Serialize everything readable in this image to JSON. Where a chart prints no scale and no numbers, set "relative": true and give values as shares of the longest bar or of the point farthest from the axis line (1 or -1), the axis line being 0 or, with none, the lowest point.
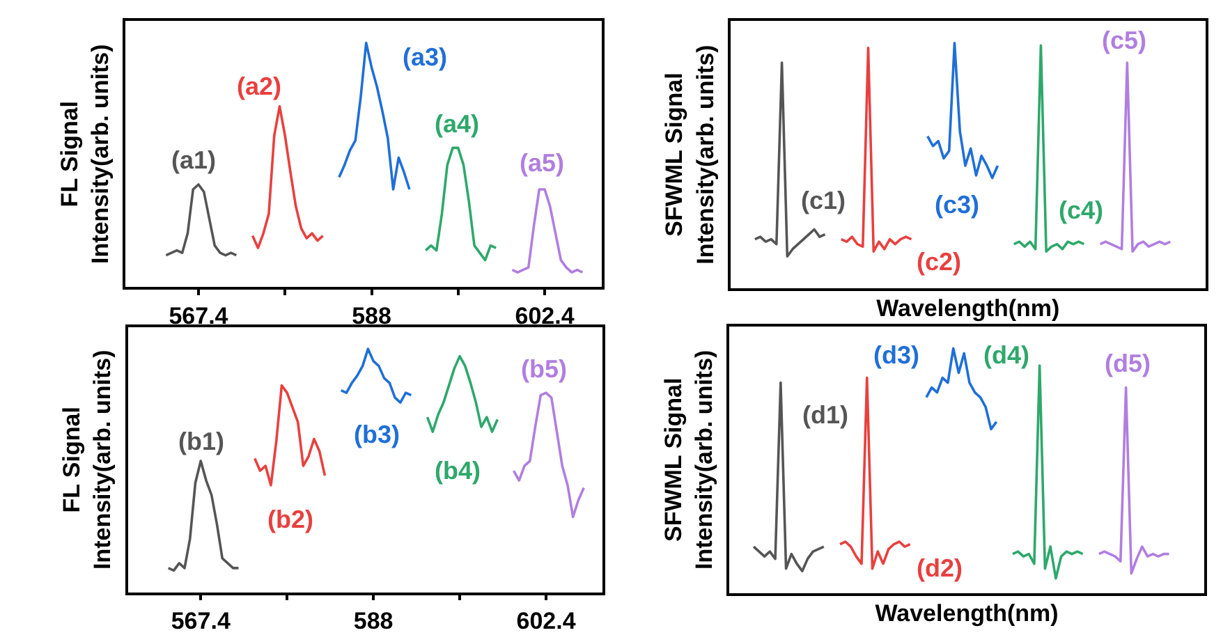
{
  "chart_data": [
    {
      "type": "line",
      "relative": true,
      "ylabel": "FL Signal\nIntensity(arb. units)",
      "categories": [
        null,
        null,
        null,
        null,
        null,
        null,
        null,
        null,
        null,
        null,
        null,
        null,
        null,
        "567.4",
        null,
        null,
        null,
        null,
        null,
        null,
        null,
        null,
        null,
        null,
        null,
        null,
        null,
        null,
        null,
        null,
        null,
        null,
        null,
        null,
        null,
        null,
        null,
        null,
        null,
        null,
        null,
        null,
        null,
        null,
        null,
        "588",
        null,
        null,
        null,
        null,
        null,
        null,
        null,
        null,
        null,
        null,
        null,
        null,
        null,
        null,
        null,
        null,
        null,
        null,
        null,
        null,
        null,
        null,
        null,
        null,
        null,
        null,
        null,
        null,
        null,
        null,
        null,
        "602.4",
        null,
        null,
        null,
        null,
        null,
        null,
        null,
        null,
        null,
        null
      ],
      "series": [
        {
          "color": "#555555",
          "values": [
            null,
            null,
            null,
            null,
            null,
            null,
            null,
            0.13,
            0.14,
            0.15,
            0.14,
            0.22,
            0.4,
            0.42,
            0.39,
            0.28,
            0.17,
            0.14,
            0.13,
            0.14,
            0.13,
            null,
            null,
            null,
            null,
            null,
            null,
            null,
            null,
            null,
            null,
            null,
            null,
            null,
            null,
            null,
            null,
            null,
            null,
            null,
            null,
            null,
            null,
            null,
            null,
            null,
            null,
            null,
            null,
            null,
            null,
            null,
            null,
            null,
            null,
            null,
            null,
            null,
            null,
            null,
            null,
            null,
            null,
            null,
            null,
            null,
            null,
            null,
            null,
            null,
            null,
            null,
            null,
            null,
            null,
            null,
            null,
            null,
            null,
            null,
            null,
            null,
            null,
            null,
            null,
            null,
            null,
            null
          ]
        },
        {
          "color": "#e8403f",
          "values": [
            null,
            null,
            null,
            null,
            null,
            null,
            null,
            null,
            null,
            null,
            null,
            null,
            null,
            null,
            null,
            null,
            null,
            null,
            null,
            null,
            null,
            null,
            null,
            0.21,
            0.16,
            0.22,
            0.3,
            0.62,
            0.74,
            0.62,
            0.47,
            0.33,
            0.24,
            0.2,
            0.22,
            0.19,
            0.21,
            null,
            null,
            null,
            null,
            null,
            null,
            null,
            null,
            null,
            null,
            null,
            null,
            null,
            null,
            null,
            null,
            null,
            null,
            null,
            null,
            null,
            null,
            null,
            null,
            null,
            null,
            null,
            null,
            null,
            null,
            null,
            null,
            null,
            null,
            null,
            null,
            null,
            null,
            null,
            null,
            null,
            null,
            null,
            null,
            null,
            null,
            null,
            null,
            null,
            null,
            null
          ]
        },
        {
          "color": "#1f6fd8",
          "values": [
            null,
            null,
            null,
            null,
            null,
            null,
            null,
            null,
            null,
            null,
            null,
            null,
            null,
            null,
            null,
            null,
            null,
            null,
            null,
            null,
            null,
            null,
            null,
            null,
            null,
            null,
            null,
            null,
            null,
            null,
            null,
            null,
            null,
            null,
            null,
            null,
            null,
            null,
            null,
            0.45,
            0.5,
            0.56,
            0.6,
            0.78,
            1.0,
            0.9,
            0.82,
            0.72,
            0.61,
            0.4,
            0.53,
            0.47,
            0.4,
            null,
            null,
            null,
            null,
            null,
            null,
            null,
            null,
            null,
            null,
            null,
            null,
            null,
            null,
            null,
            null,
            null,
            null,
            null,
            null,
            null,
            null,
            null,
            null,
            null,
            null,
            null,
            null,
            null,
            null,
            null,
            null,
            null,
            null,
            null
          ]
        },
        {
          "color": "#2ea86b",
          "values": [
            null,
            null,
            null,
            null,
            null,
            null,
            null,
            null,
            null,
            null,
            null,
            null,
            null,
            null,
            null,
            null,
            null,
            null,
            null,
            null,
            null,
            null,
            null,
            null,
            null,
            null,
            null,
            null,
            null,
            null,
            null,
            null,
            null,
            null,
            null,
            null,
            null,
            null,
            null,
            null,
            null,
            null,
            null,
            null,
            null,
            null,
            null,
            null,
            null,
            null,
            null,
            null,
            null,
            null,
            null,
            0.15,
            0.17,
            0.15,
            0.3,
            0.5,
            0.57,
            0.57,
            0.5,
            0.35,
            0.17,
            0.14,
            0.11,
            0.17,
            0.16,
            null,
            null,
            null,
            null,
            null,
            null,
            null,
            null,
            null,
            null,
            null,
            null,
            null,
            null,
            null,
            null,
            null,
            null,
            null
          ]
        },
        {
          "color": "#b07ee0",
          "values": [
            null,
            null,
            null,
            null,
            null,
            null,
            null,
            null,
            null,
            null,
            null,
            null,
            null,
            null,
            null,
            null,
            null,
            null,
            null,
            null,
            null,
            null,
            null,
            null,
            null,
            null,
            null,
            null,
            null,
            null,
            null,
            null,
            null,
            null,
            null,
            null,
            null,
            null,
            null,
            null,
            null,
            null,
            null,
            null,
            null,
            null,
            null,
            null,
            null,
            null,
            null,
            null,
            null,
            null,
            null,
            null,
            null,
            null,
            null,
            null,
            null,
            null,
            null,
            null,
            null,
            null,
            null,
            null,
            null,
            null,
            null,
            0.07,
            0.06,
            0.07,
            0.08,
            0.25,
            0.4,
            0.4,
            0.33,
            0.22,
            0.11,
            0.08,
            0.06,
            0.07,
            0.06,
            null,
            null,
            null
          ]
        }
      ],
      "annotations": [
        "(a1)",
        "(a2)",
        "(a3)",
        "(a4)",
        "(a5)"
      ]
    },
    {
      "type": "line",
      "relative": true,
      "ylabel": "SFWML Signal\nIntensity(arb. units)",
      "xlabel": "Wavelength(nm)",
      "categories": [
        null,
        null,
        null,
        null,
        null,
        null,
        null,
        null,
        null,
        null,
        null,
        null,
        null,
        null,
        null,
        null,
        null,
        null,
        null,
        null,
        null,
        null,
        null,
        null,
        null,
        null,
        null,
        null,
        null,
        null,
        null,
        null,
        null,
        null,
        null,
        null,
        null,
        null,
        null,
        null,
        null,
        null,
        null,
        null,
        null,
        null,
        null,
        null,
        null,
        null,
        null,
        null,
        null,
        null,
        null,
        null,
        null,
        null,
        null,
        null,
        null,
        null,
        null,
        null,
        null,
        null,
        null,
        null,
        null,
        null,
        null,
        null,
        null,
        null,
        null,
        null,
        null,
        null,
        null,
        null,
        null,
        null,
        null,
        null,
        null,
        null,
        null,
        null
      ],
      "series": [
        {
          "color": "#555555",
          "values": [
            null,
            null,
            null,
            null,
            0.2,
            0.21,
            0.19,
            0.2,
            0.18,
            0.92,
            0.13,
            0.16,
            0.18,
            0.2,
            0.22,
            0.24,
            0.21,
            0.22,
            null,
            null,
            null,
            null,
            null,
            null,
            null,
            null,
            null,
            null,
            null,
            null,
            null,
            null,
            null,
            null,
            null,
            null,
            null,
            null,
            null,
            null,
            null,
            null,
            null,
            null,
            null,
            null,
            null,
            null,
            null,
            null,
            null,
            null,
            null,
            null,
            null,
            null,
            null,
            null,
            null,
            null,
            null,
            null,
            null,
            null,
            null,
            null,
            null,
            null,
            null,
            null,
            null,
            null,
            null,
            null,
            null,
            null,
            null,
            null,
            null,
            null,
            null,
            null,
            null,
            null,
            null,
            null,
            null,
            null
          ]
        },
        {
          "color": "#e8403f",
          "values": [
            null,
            null,
            null,
            null,
            null,
            null,
            null,
            null,
            null,
            null,
            null,
            null,
            null,
            null,
            null,
            null,
            null,
            null,
            null,
            null,
            0.2,
            0.19,
            0.21,
            0.18,
            0.17,
            0.98,
            0.15,
            0.19,
            0.16,
            0.2,
            0.18,
            0.2,
            0.21,
            0.2,
            null,
            null,
            null,
            null,
            null,
            null,
            null,
            null,
            null,
            null,
            null,
            null,
            null,
            null,
            null,
            null,
            null,
            null,
            null,
            null,
            null,
            null,
            null,
            null,
            null,
            null,
            null,
            null,
            null,
            null,
            null,
            null,
            null,
            null,
            null,
            null,
            null,
            null,
            null,
            null,
            null,
            null,
            null,
            null,
            null,
            null,
            null,
            null,
            null,
            null,
            null,
            null,
            null,
            null
          ]
        },
        {
          "color": "#1f6fd8",
          "values": [
            null,
            null,
            null,
            null,
            null,
            null,
            null,
            null,
            null,
            null,
            null,
            null,
            null,
            null,
            null,
            null,
            null,
            null,
            null,
            null,
            null,
            null,
            null,
            null,
            null,
            null,
            null,
            null,
            null,
            null,
            null,
            null,
            null,
            null,
            null,
            null,
            0.62,
            0.58,
            0.6,
            0.53,
            0.56,
            1.0,
            0.64,
            0.5,
            0.57,
            0.46,
            0.54,
            0.5,
            0.45,
            0.5,
            null,
            null,
            null,
            null,
            null,
            null,
            null,
            null,
            null,
            null,
            null,
            null,
            null,
            null,
            null,
            null,
            null,
            null,
            null,
            null,
            null,
            null,
            null,
            null,
            null,
            null,
            null,
            null,
            null,
            null,
            null,
            null,
            null,
            null,
            null,
            null,
            null,
            null
          ]
        },
        {
          "color": "#2ea86b",
          "values": [
            null,
            null,
            null,
            null,
            null,
            null,
            null,
            null,
            null,
            null,
            null,
            null,
            null,
            null,
            null,
            null,
            null,
            null,
            null,
            null,
            null,
            null,
            null,
            null,
            null,
            null,
            null,
            null,
            null,
            null,
            null,
            null,
            null,
            null,
            null,
            null,
            null,
            null,
            null,
            null,
            null,
            null,
            null,
            null,
            null,
            null,
            null,
            null,
            null,
            null,
            null,
            null,
            0.18,
            0.19,
            0.17,
            0.19,
            0.16,
            0.99,
            0.15,
            0.17,
            0.18,
            0.16,
            0.19,
            0.18,
            0.19,
            0.18,
            null,
            null,
            null,
            null,
            null,
            null,
            null,
            null,
            null,
            null,
            null,
            null,
            null,
            null,
            null,
            null,
            null,
            null,
            null,
            null,
            null,
            null
          ]
        },
        {
          "color": "#b07ee0",
          "values": [
            null,
            null,
            null,
            null,
            null,
            null,
            null,
            null,
            null,
            null,
            null,
            null,
            null,
            null,
            null,
            null,
            null,
            null,
            null,
            null,
            null,
            null,
            null,
            null,
            null,
            null,
            null,
            null,
            null,
            null,
            null,
            null,
            null,
            null,
            null,
            null,
            null,
            null,
            null,
            null,
            null,
            null,
            null,
            null,
            null,
            null,
            null,
            null,
            null,
            null,
            null,
            null,
            null,
            null,
            null,
            null,
            null,
            null,
            null,
            null,
            null,
            null,
            null,
            null,
            null,
            null,
            null,
            null,
            0.18,
            0.19,
            0.18,
            0.17,
            0.16,
            0.92,
            0.15,
            0.18,
            0.19,
            0.17,
            0.18,
            0.19,
            0.18,
            0.19,
            null,
            null,
            null,
            null,
            null,
            null
          ]
        }
      ],
      "annotations": [
        "(c1)",
        "(c2)",
        "(c3)",
        "(c4)",
        "(c5)"
      ]
    },
    {
      "type": "line",
      "relative": true,
      "ylabel": "FL Signal\nIntensity(arb. units)",
      "categories": [
        null,
        null,
        null,
        null,
        null,
        null,
        null,
        null,
        null,
        null,
        null,
        null,
        null,
        "567.4",
        null,
        null,
        null,
        null,
        null,
        null,
        null,
        null,
        null,
        null,
        null,
        null,
        null,
        null,
        null,
        null,
        null,
        null,
        null,
        null,
        null,
        null,
        null,
        null,
        null,
        null,
        null,
        null,
        null,
        null,
        null,
        "588",
        null,
        null,
        null,
        null,
        null,
        null,
        null,
        null,
        null,
        null,
        null,
        null,
        null,
        null,
        null,
        null,
        null,
        null,
        null,
        null,
        null,
        null,
        null,
        null,
        null,
        null,
        null,
        null,
        null,
        null,
        null,
        "602.4",
        null,
        null,
        null,
        null,
        null,
        null,
        null,
        null,
        null,
        null
      ],
      "series": [
        {
          "color": "#555555",
          "values": [
            null,
            null,
            null,
            null,
            null,
            null,
            null,
            0.1,
            0.09,
            0.12,
            0.1,
            0.22,
            0.45,
            0.54,
            0.46,
            0.4,
            0.28,
            0.14,
            0.12,
            0.1,
            0.1,
            null,
            null,
            null,
            null,
            null,
            null,
            null,
            null,
            null,
            null,
            null,
            null,
            null,
            null,
            null,
            null,
            null,
            null,
            null,
            null,
            null,
            null,
            null,
            null,
            null,
            null,
            null,
            null,
            null,
            null,
            null,
            null,
            null,
            null,
            null,
            null,
            null,
            null,
            null,
            null,
            null,
            null,
            null,
            null,
            null,
            null,
            null,
            null,
            null,
            null,
            null,
            null,
            null,
            null,
            null,
            null,
            null,
            null,
            null,
            null,
            null,
            null,
            null,
            null,
            null,
            null,
            null
          ]
        },
        {
          "color": "#e8403f",
          "values": [
            null,
            null,
            null,
            null,
            null,
            null,
            null,
            null,
            null,
            null,
            null,
            null,
            null,
            null,
            null,
            null,
            null,
            null,
            null,
            null,
            null,
            null,
            null,
            0.55,
            0.5,
            0.52,
            0.44,
            0.62,
            0.85,
            0.82,
            0.76,
            0.7,
            0.52,
            0.56,
            0.63,
            0.58,
            0.48,
            null,
            null,
            null,
            null,
            null,
            null,
            null,
            null,
            null,
            null,
            null,
            null,
            null,
            null,
            null,
            null,
            null,
            null,
            null,
            null,
            null,
            null,
            null,
            null,
            null,
            null,
            null,
            null,
            null,
            null,
            null,
            null,
            null,
            null,
            null,
            null,
            null,
            null,
            null,
            null,
            null,
            null,
            null,
            null,
            null,
            null,
            null,
            null,
            null,
            null,
            null
          ]
        },
        {
          "color": "#1f6fd8",
          "values": [
            null,
            null,
            null,
            null,
            null,
            null,
            null,
            null,
            null,
            null,
            null,
            null,
            null,
            null,
            null,
            null,
            null,
            null,
            null,
            null,
            null,
            null,
            null,
            null,
            null,
            null,
            null,
            null,
            null,
            null,
            null,
            null,
            null,
            null,
            null,
            null,
            null,
            null,
            null,
            0.83,
            0.82,
            0.86,
            0.89,
            0.93,
            1.0,
            0.95,
            0.93,
            0.88,
            0.86,
            0.8,
            0.78,
            0.82,
            0.81,
            null,
            null,
            null,
            null,
            null,
            null,
            null,
            null,
            null,
            null,
            null,
            null,
            null,
            null,
            null,
            null,
            null,
            null,
            null,
            null,
            null,
            null,
            null,
            null,
            null,
            null,
            null,
            null,
            null,
            null,
            null,
            null,
            null,
            null,
            null
          ]
        },
        {
          "color": "#2ea86b",
          "values": [
            null,
            null,
            null,
            null,
            null,
            null,
            null,
            null,
            null,
            null,
            null,
            null,
            null,
            null,
            null,
            null,
            null,
            null,
            null,
            null,
            null,
            null,
            null,
            null,
            null,
            null,
            null,
            null,
            null,
            null,
            null,
            null,
            null,
            null,
            null,
            null,
            null,
            null,
            null,
            null,
            null,
            null,
            null,
            null,
            null,
            null,
            null,
            null,
            null,
            null,
            null,
            null,
            null,
            null,
            null,
            0.72,
            0.66,
            0.73,
            0.78,
            0.85,
            0.92,
            0.97,
            0.93,
            0.86,
            0.78,
            0.68,
            0.72,
            0.66,
            0.71,
            null,
            null,
            null,
            null,
            null,
            null,
            null,
            null,
            null,
            null,
            null,
            null,
            null,
            null,
            null,
            null,
            null,
            null,
            null
          ]
        },
        {
          "color": "#b07ee0",
          "values": [
            null,
            null,
            null,
            null,
            null,
            null,
            null,
            null,
            null,
            null,
            null,
            null,
            null,
            null,
            null,
            null,
            null,
            null,
            null,
            null,
            null,
            null,
            null,
            null,
            null,
            null,
            null,
            null,
            null,
            null,
            null,
            null,
            null,
            null,
            null,
            null,
            null,
            null,
            null,
            null,
            null,
            null,
            null,
            null,
            null,
            null,
            null,
            null,
            null,
            null,
            null,
            null,
            null,
            null,
            null,
            null,
            null,
            null,
            null,
            null,
            null,
            null,
            null,
            null,
            null,
            null,
            null,
            null,
            null,
            null,
            null,
            0.5,
            0.46,
            0.52,
            0.54,
            0.68,
            0.81,
            0.82,
            0.8,
            0.66,
            0.52,
            0.44,
            0.31,
            0.38,
            0.43,
            null,
            null,
            null
          ]
        }
      ],
      "annotations": [
        "(b1)",
        "(b2)",
        "(b3)",
        "(b4)",
        "(b5)"
      ]
    },
    {
      "type": "line",
      "relative": true,
      "ylabel": "SFWML Signal\nIntensity(arb. units)",
      "xlabel": "Wavelength(nm)",
      "categories": [
        null,
        null,
        null,
        null,
        null,
        null,
        null,
        null,
        null,
        null,
        null,
        null,
        null,
        null,
        null,
        null,
        null,
        null,
        null,
        null,
        null,
        null,
        null,
        null,
        null,
        null,
        null,
        null,
        null,
        null,
        null,
        null,
        null,
        null,
        null,
        null,
        null,
        null,
        null,
        null,
        null,
        null,
        null,
        null,
        null,
        null,
        null,
        null,
        null,
        null,
        null,
        null,
        null,
        null,
        null,
        null,
        null,
        null,
        null,
        null,
        null,
        null,
        null,
        null,
        null,
        null,
        null,
        null,
        null,
        null,
        null,
        null,
        null,
        null,
        null,
        null,
        null,
        null,
        null,
        null,
        null,
        null,
        null,
        null,
        null,
        null,
        null,
        null
      ],
      "series": [
        {
          "color": "#555555",
          "values": [
            null,
            null,
            null,
            null,
            0.19,
            0.17,
            0.15,
            0.17,
            0.14,
            0.86,
            0.1,
            0.16,
            0.12,
            0.09,
            0.14,
            0.17,
            0.18,
            0.19,
            null,
            null,
            null,
            null,
            null,
            null,
            null,
            null,
            null,
            null,
            null,
            null,
            null,
            null,
            null,
            null,
            null,
            null,
            null,
            null,
            null,
            null,
            null,
            null,
            null,
            null,
            null,
            null,
            null,
            null,
            null,
            null,
            null,
            null,
            null,
            null,
            null,
            null,
            null,
            null,
            null,
            null,
            null,
            null,
            null,
            null,
            null,
            null,
            null,
            null,
            null,
            null,
            null,
            null,
            null,
            null,
            null,
            null,
            null,
            null,
            null,
            null,
            null,
            null,
            null,
            null,
            null,
            null,
            null,
            null
          ]
        },
        {
          "color": "#e8403f",
          "values": [
            null,
            null,
            null,
            null,
            null,
            null,
            null,
            null,
            null,
            null,
            null,
            null,
            null,
            null,
            null,
            null,
            null,
            null,
            null,
            null,
            0.2,
            0.21,
            0.19,
            0.15,
            0.12,
            0.88,
            0.1,
            0.17,
            0.12,
            0.18,
            0.2,
            0.21,
            0.19,
            0.2,
            null,
            null,
            null,
            null,
            null,
            null,
            null,
            null,
            null,
            null,
            null,
            null,
            null,
            null,
            null,
            null,
            null,
            null,
            null,
            null,
            null,
            null,
            null,
            null,
            null,
            null,
            null,
            null,
            null,
            null,
            null,
            null,
            null,
            null,
            null,
            null,
            null,
            null,
            null,
            null,
            null,
            null,
            null,
            null,
            null,
            null,
            null,
            null,
            null,
            null,
            null,
            null,
            null,
            null
          ]
        },
        {
          "color": "#1f6fd8",
          "values": [
            null,
            null,
            null,
            null,
            null,
            null,
            null,
            null,
            null,
            null,
            null,
            null,
            null,
            null,
            null,
            null,
            null,
            null,
            null,
            null,
            null,
            null,
            null,
            null,
            null,
            null,
            null,
            null,
            null,
            null,
            null,
            null,
            null,
            null,
            null,
            null,
            0.8,
            0.84,
            0.82,
            0.88,
            0.86,
            1.0,
            0.9,
            0.98,
            0.86,
            0.82,
            0.8,
            0.76,
            0.67,
            0.7,
            null,
            null,
            null,
            null,
            null,
            null,
            null,
            null,
            null,
            null,
            null,
            null,
            null,
            null,
            null,
            null,
            null,
            null,
            null,
            null,
            null,
            null,
            null,
            null,
            null,
            null,
            null,
            null,
            null,
            null,
            null,
            null,
            null,
            null,
            null,
            null,
            null,
            null
          ]
        },
        {
          "color": "#2ea86b",
          "values": [
            null,
            null,
            null,
            null,
            null,
            null,
            null,
            null,
            null,
            null,
            null,
            null,
            null,
            null,
            null,
            null,
            null,
            null,
            null,
            null,
            null,
            null,
            null,
            null,
            null,
            null,
            null,
            null,
            null,
            null,
            null,
            null,
            null,
            null,
            null,
            null,
            null,
            null,
            null,
            null,
            null,
            null,
            null,
            null,
            null,
            null,
            null,
            null,
            null,
            null,
            null,
            null,
            0.16,
            0.17,
            0.15,
            0.16,
            0.12,
            0.93,
            0.1,
            0.19,
            0.06,
            0.15,
            0.17,
            0.16,
            0.17,
            0.16,
            null,
            null,
            null,
            null,
            null,
            null,
            null,
            null,
            null,
            null,
            null,
            null,
            null,
            null,
            null,
            null,
            null,
            null,
            null,
            null,
            null,
            null
          ]
        },
        {
          "color": "#b07ee0",
          "values": [
            null,
            null,
            null,
            null,
            null,
            null,
            null,
            null,
            null,
            null,
            null,
            null,
            null,
            null,
            null,
            null,
            null,
            null,
            null,
            null,
            null,
            null,
            null,
            null,
            null,
            null,
            null,
            null,
            null,
            null,
            null,
            null,
            null,
            null,
            null,
            null,
            null,
            null,
            null,
            null,
            null,
            null,
            null,
            null,
            null,
            null,
            null,
            null,
            null,
            null,
            null,
            null,
            null,
            null,
            null,
            null,
            null,
            null,
            null,
            null,
            null,
            null,
            null,
            null,
            null,
            null,
            null,
            null,
            0.16,
            0.17,
            0.16,
            0.15,
            0.13,
            0.84,
            0.08,
            0.14,
            0.19,
            0.15,
            0.16,
            0.15,
            0.16,
            0.16,
            null,
            null,
            null,
            null,
            null,
            null
          ]
        }
      ],
      "annotations": [
        "(d1)",
        "(d2)",
        "(d3)",
        "(d4)",
        "(d5)"
      ]
    }
  ]
}
